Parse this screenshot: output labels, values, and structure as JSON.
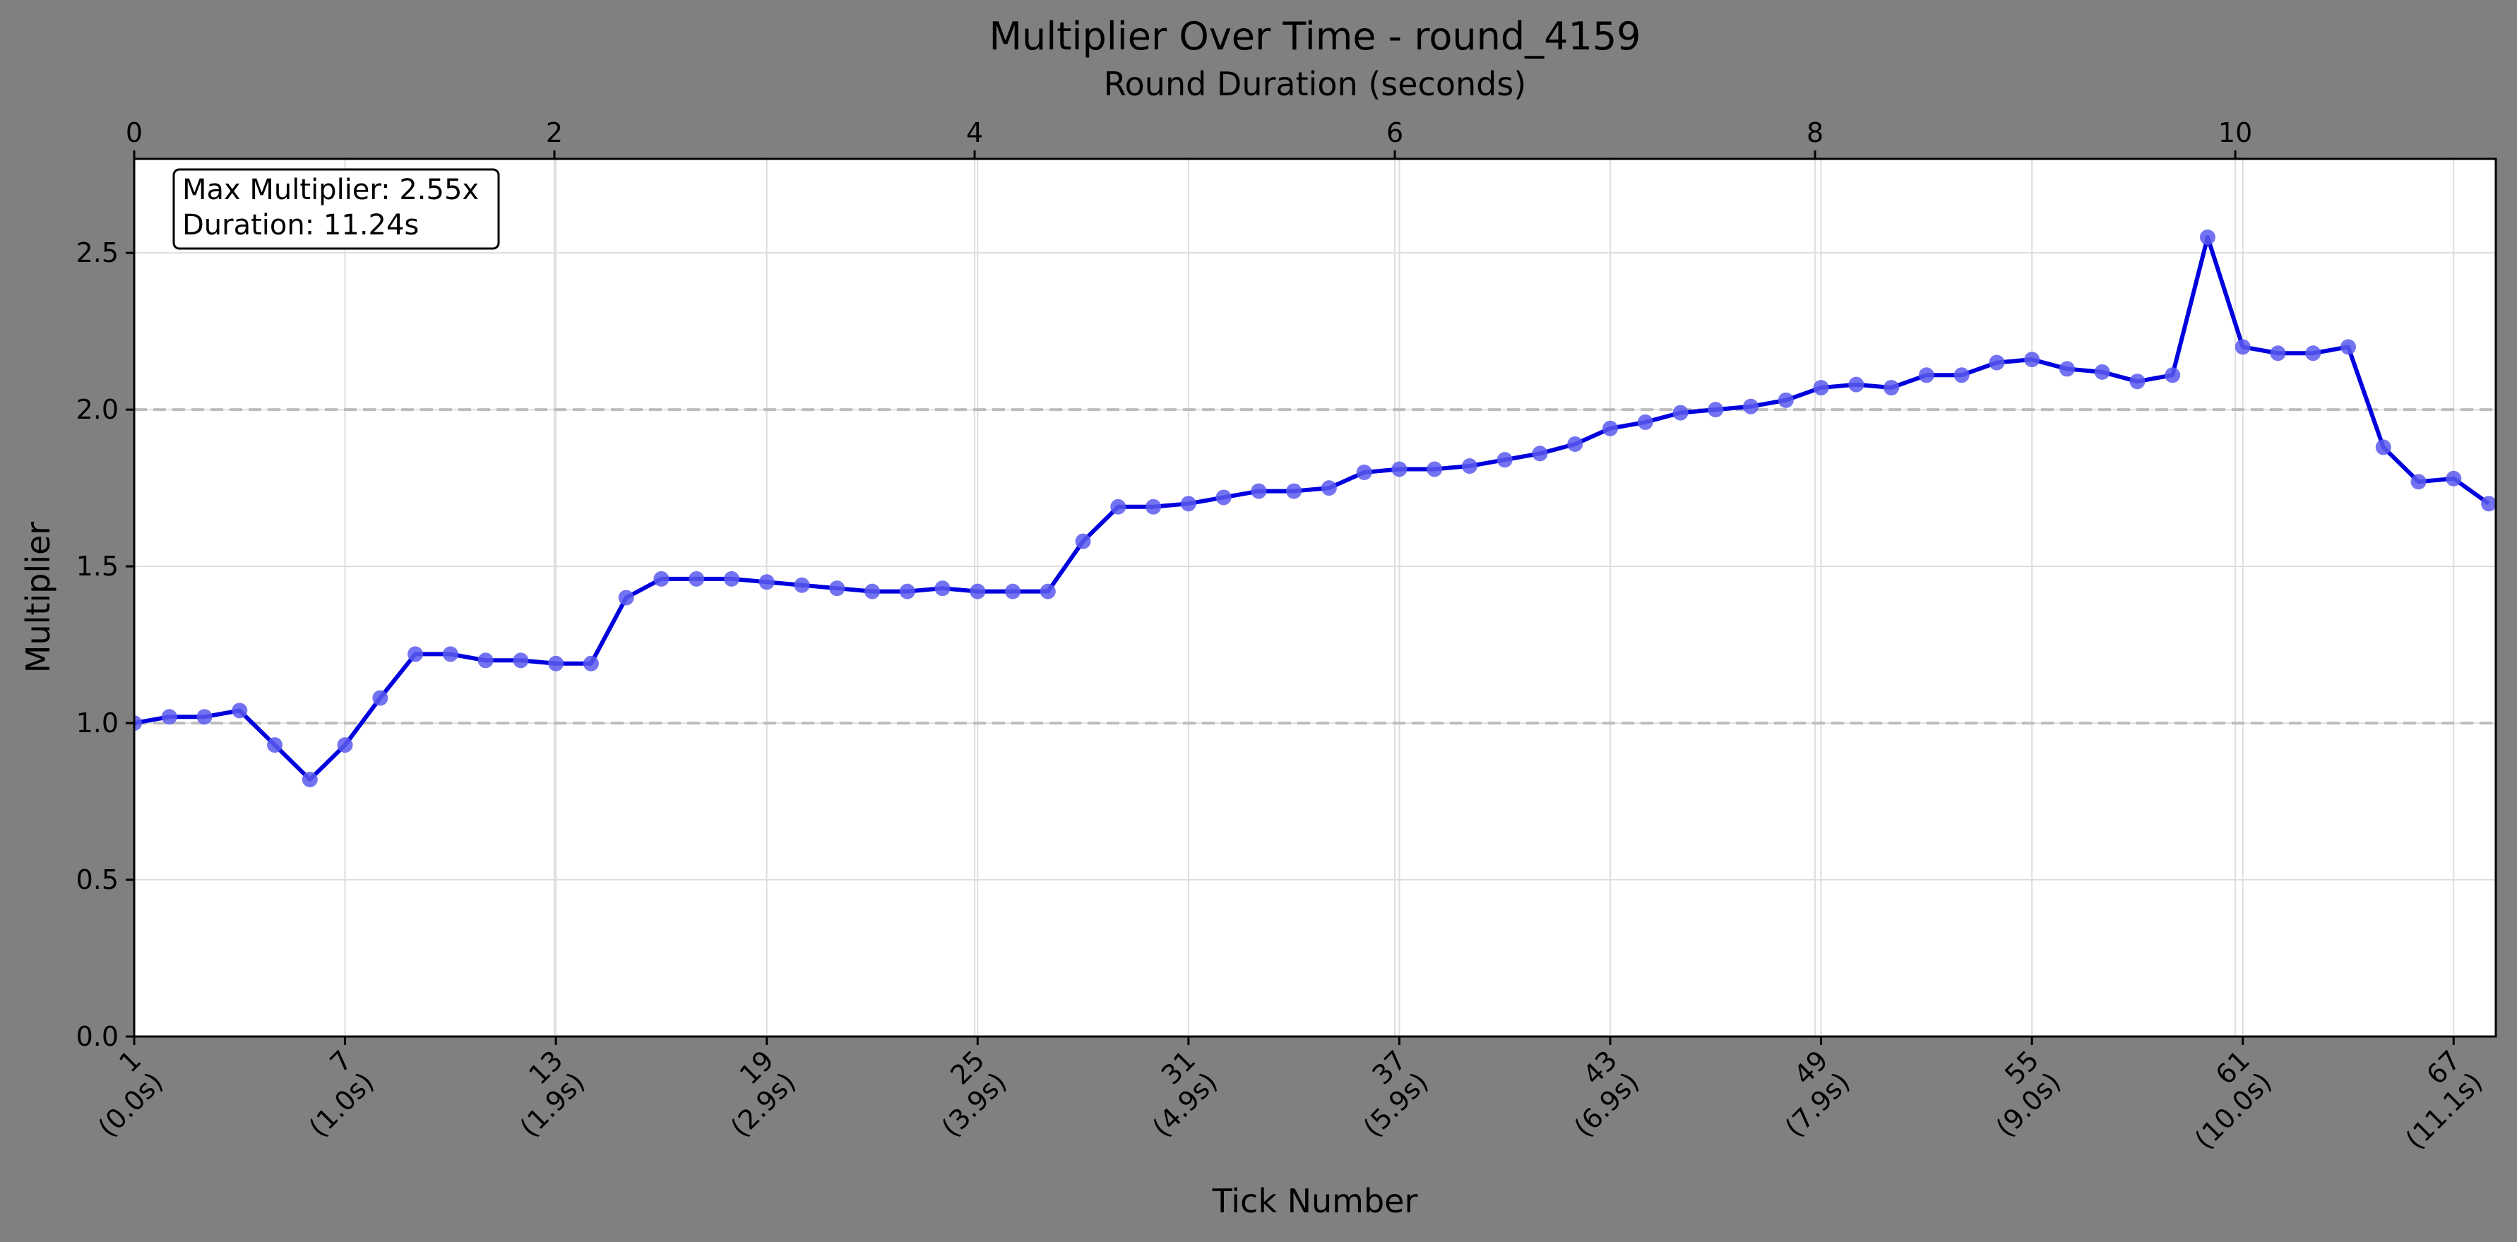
{
  "chart_data": {
    "type": "line",
    "title": "Multiplier Over Time - round_4159",
    "xlabel": "Tick Number",
    "ylabel": "Multiplier",
    "secondary_xlabel": "Round Duration (seconds)",
    "xlim": [
      1,
      68.2
    ],
    "ylim": [
      0,
      2.8
    ],
    "grid": true,
    "y_ticks": [
      "0.0",
      "0.5",
      "1.0",
      "1.5",
      "2.0",
      "2.5"
    ],
    "y_tick_values": [
      0,
      0.5,
      1.0,
      1.5,
      2.0,
      2.5
    ],
    "x_ticks": [
      {
        "tick": 1,
        "line1": "1",
        "line2": "(0.0s)"
      },
      {
        "tick": 7,
        "line1": "7",
        "line2": "(1.0s)"
      },
      {
        "tick": 13,
        "line1": "13",
        "line2": "(1.9s)"
      },
      {
        "tick": 19,
        "line1": "19",
        "line2": "(2.9s)"
      },
      {
        "tick": 25,
        "line1": "25",
        "line2": "(3.9s)"
      },
      {
        "tick": 31,
        "line1": "31",
        "line2": "(4.9s)"
      },
      {
        "tick": 37,
        "line1": "37",
        "line2": "(5.9s)"
      },
      {
        "tick": 43,
        "line1": "43",
        "line2": "(6.9s)"
      },
      {
        "tick": 49,
        "line1": "49",
        "line2": "(7.9s)"
      },
      {
        "tick": 55,
        "line1": "55",
        "line2": "(9.0s)"
      },
      {
        "tick": 61,
        "line1": "61",
        "line2": "(10.0s)"
      },
      {
        "tick": 67,
        "line1": "67",
        "line2": "(11.1s)"
      }
    ],
    "secondary_x_ticks": [
      {
        "seconds": 0,
        "label": "0"
      },
      {
        "seconds": 2,
        "label": "2"
      },
      {
        "seconds": 4,
        "label": "4"
      },
      {
        "seconds": 6,
        "label": "6"
      },
      {
        "seconds": 8,
        "label": "8"
      },
      {
        "seconds": 10,
        "label": "10"
      }
    ],
    "secondary_xlim": [
      0,
      11.24
    ],
    "reference_lines": [
      1.0,
      2.0
    ],
    "line_color": "#0000dd",
    "marker_color": "#5a5aef",
    "annotation": {
      "line1": "Max Multiplier: 2.55x",
      "line2": "Duration: 11.24s",
      "position": "top-left"
    },
    "series": [
      {
        "x": [
          1,
          2,
          3,
          4,
          5,
          6,
          7,
          8,
          9,
          10,
          11,
          12,
          13,
          14,
          15,
          16,
          17,
          18,
          19,
          20,
          21,
          22,
          23,
          24,
          25,
          26,
          27,
          28,
          29,
          30,
          31,
          32,
          33,
          34,
          35,
          36,
          37,
          38,
          39,
          40,
          41,
          42,
          43,
          44,
          45,
          46,
          47,
          48,
          49,
          50,
          51,
          52,
          53,
          54,
          55,
          56,
          57,
          58,
          59,
          60,
          61,
          62,
          63,
          64,
          65,
          66,
          67,
          68
        ],
        "values": [
          1.0,
          1.02,
          1.02,
          1.04,
          0.93,
          0.82,
          0.93,
          1.08,
          1.22,
          1.22,
          1.2,
          1.2,
          1.19,
          1.19,
          1.4,
          1.46,
          1.46,
          1.46,
          1.45,
          1.44,
          1.43,
          1.42,
          1.42,
          1.43,
          1.42,
          1.42,
          1.42,
          1.58,
          1.69,
          1.69,
          1.7,
          1.72,
          1.74,
          1.74,
          1.75,
          1.8,
          1.81,
          1.81,
          1.82,
          1.84,
          1.86,
          1.89,
          1.94,
          1.96,
          1.99,
          2.0,
          2.01,
          2.03,
          2.07,
          2.08,
          2.07,
          2.11,
          2.11,
          2.15,
          2.16,
          2.13,
          2.12,
          2.09,
          2.11,
          2.55,
          2.2,
          2.18,
          2.18,
          2.2,
          1.88,
          1.77,
          1.78,
          1.7
        ]
      }
    ]
  }
}
